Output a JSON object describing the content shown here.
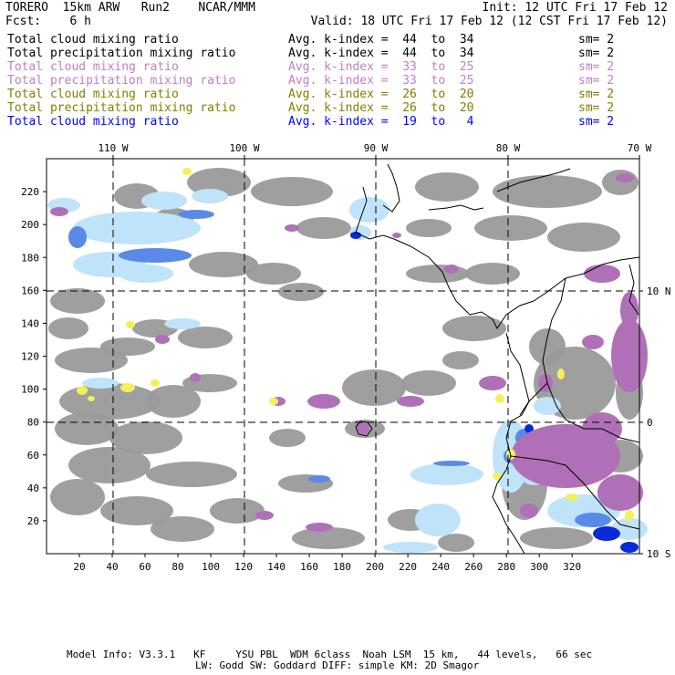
{
  "header": {
    "model_left": "TORERO  15km ARW   Run2    NCAR/MMM",
    "init": "Init: 12 UTC Fri 17 Feb 12",
    "fcst_label": "Fcst:    6 h",
    "valid": "Valid: 18 UTC Fri 17 Feb 12 (12 CST Fri 17 Feb 12)"
  },
  "legend": [
    {
      "name": "Total cloud mixing ratio",
      "kindex": "Avg. k-index =  44  to  34",
      "sm": "sm= 2",
      "color": "#000000"
    },
    {
      "name": "Total precipitation mixing ratio",
      "kindex": "Avg. k-index =  44  to  34",
      "sm": "sm= 2",
      "color": "#000000"
    },
    {
      "name": "Total cloud mixing ratio",
      "kindex": "Avg. k-index =  33  to  25",
      "sm": "sm= 2",
      "color": "#c080c0"
    },
    {
      "name": "Total precipitation mixing ratio",
      "kindex": "Avg. k-index =  33  to  25",
      "sm": "sm= 2",
      "color": "#c080c0"
    },
    {
      "name": "Total cloud mixing ratio",
      "kindex": "Avg. k-index =  26  to  20",
      "sm": "sm= 2",
      "color": "#808000"
    },
    {
      "name": "Total precipitation mixing ratio",
      "kindex": "Avg. k-index =  26  to  20",
      "sm": "sm= 2",
      "color": "#808000"
    },
    {
      "name": "Total cloud mixing ratio",
      "kindex": "Avg. k-index =  19  to   4",
      "sm": "sm= 2",
      "color": "#0000ff"
    }
  ],
  "map": {
    "lon_labels": [
      "110 W",
      "100 W",
      "90 W",
      "80 W",
      "70 W"
    ],
    "lat_labels": [
      "10 N",
      "0",
      "10 S"
    ],
    "x_ticks": [
      "20",
      "40",
      "60",
      "80",
      "100",
      "120",
      "140",
      "160",
      "180",
      "200",
      "220",
      "240",
      "260",
      "280",
      "300",
      "320"
    ],
    "y_ticks": [
      "20",
      "40",
      "60",
      "80",
      "100",
      "120",
      "140",
      "160",
      "180",
      "200",
      "220"
    ],
    "colors": {
      "gray": "#9a9a9a",
      "purple": "#b070b8",
      "light_blue": "#bfe3f8",
      "blue": "#5a8ae8",
      "dark_blue": "#0a2ad8",
      "yellow": "#f4f05a"
    }
  },
  "footer": {
    "line1": "Model Info: V3.3.1   KF     YSU PBL  WDM 6class  Noah LSM  15 km,   44 levels,   66 sec",
    "line2": "LW: Godd SW: Goddard DIFF: simple KM: 2D Smagor"
  }
}
